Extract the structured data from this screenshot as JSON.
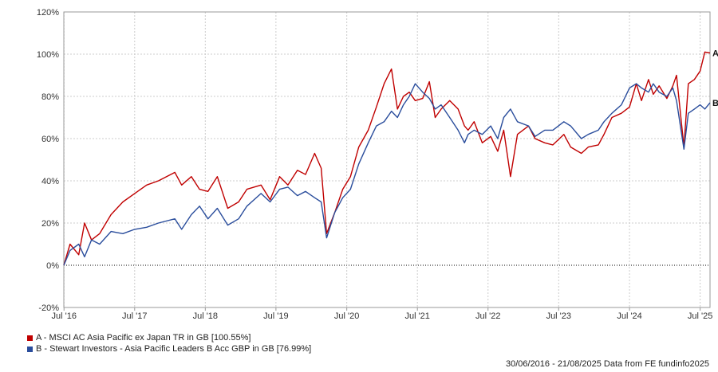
{
  "chart_data": {
    "type": "line",
    "ylabel": "",
    "xlabel": "",
    "y_unit": "%",
    "ylim": [
      -20,
      120
    ],
    "y_ticks": [
      -20,
      0,
      20,
      40,
      60,
      80,
      100,
      120
    ],
    "y_tick_labels": [
      "-20%",
      "0%",
      "20%",
      "40%",
      "60%",
      "80%",
      "100%",
      "120%"
    ],
    "x_range": [
      "2016-06-30",
      "2025-08-21"
    ],
    "x_ticks": [
      "2016-07-01",
      "2017-07-01",
      "2018-07-01",
      "2019-07-01",
      "2020-07-01",
      "2021-07-01",
      "2022-07-01",
      "2023-07-01",
      "2024-07-01",
      "2025-07-01"
    ],
    "x_tick_labels": [
      "Jul '16",
      "Jul '17",
      "Jul '18",
      "Jul '19",
      "Jul '20",
      "Jul '21",
      "Jul '22",
      "Jul '23",
      "Jul '24",
      "Jul '25"
    ],
    "grid": true,
    "zero_line": "dotted",
    "series": [
      {
        "name": "A - MSCI AC Asia Pacific ex Japan TR in GB [100.55%]",
        "end_label": "A",
        "color": "#c00000",
        "x": [
          "2016-06-30",
          "2016-08-01",
          "2016-09-15",
          "2016-10-15",
          "2016-11-20",
          "2017-01-01",
          "2017-03-01",
          "2017-05-01",
          "2017-07-01",
          "2017-09-01",
          "2017-11-01",
          "2018-01-25",
          "2018-03-01",
          "2018-04-20",
          "2018-06-01",
          "2018-07-15",
          "2018-09-01",
          "2018-10-25",
          "2018-12-20",
          "2019-02-01",
          "2019-04-15",
          "2019-06-01",
          "2019-07-20",
          "2019-09-01",
          "2019-10-20",
          "2019-12-01",
          "2020-01-17",
          "2020-02-20",
          "2020-03-19",
          "2020-04-30",
          "2020-06-10",
          "2020-07-20",
          "2020-09-01",
          "2020-10-20",
          "2020-12-01",
          "2021-01-10",
          "2021-02-17",
          "2021-03-20",
          "2021-04-20",
          "2021-05-20",
          "2021-06-20",
          "2021-07-28",
          "2021-09-01",
          "2021-10-01",
          "2021-11-01",
          "2021-12-15",
          "2022-01-27",
          "2022-03-01",
          "2022-03-20",
          "2022-04-20",
          "2022-06-01",
          "2022-07-15",
          "2022-08-20",
          "2022-09-20",
          "2022-10-25",
          "2022-11-30",
          "2023-01-26",
          "2023-03-01",
          "2023-04-20",
          "2023-06-01",
          "2023-07-28",
          "2023-09-01",
          "2023-10-26",
          "2023-12-01",
          "2024-01-22",
          "2024-02-20",
          "2024-04-01",
          "2024-05-20",
          "2024-07-01",
          "2024-08-05",
          "2024-09-01",
          "2024-10-07",
          "2024-11-01",
          "2024-12-01",
          "2025-01-10",
          "2025-02-10",
          "2025-03-01",
          "2025-04-08",
          "2025-05-01",
          "2025-06-01",
          "2025-07-01",
          "2025-07-25",
          "2025-08-21"
        ],
        "y": [
          0,
          10,
          5,
          20,
          12,
          15,
          24,
          30,
          34,
          38,
          40,
          44,
          38,
          42,
          36,
          35,
          42,
          27,
          30,
          36,
          38,
          31,
          42,
          38,
          45,
          43,
          53,
          46,
          15,
          25,
          36,
          42,
          56,
          64,
          75,
          86,
          93,
          74,
          80,
          82,
          78,
          79,
          87,
          70,
          74,
          78,
          74,
          66,
          64,
          68,
          58,
          61,
          54,
          64,
          42,
          62,
          66,
          60,
          58,
          57,
          62,
          56,
          53,
          56,
          57,
          62,
          70,
          72,
          75,
          86,
          78,
          88,
          81,
          85,
          79,
          85,
          90,
          56,
          86,
          88,
          92,
          101,
          100.55
        ]
      },
      {
        "name": "B - Stewart Investors - Asia Pacific Leaders B Acc GBP in GB [76.99%]",
        "end_label": "B",
        "color": "#2a4d9c",
        "x": [
          "2016-06-30",
          "2016-08-01",
          "2016-09-15",
          "2016-10-15",
          "2016-11-20",
          "2017-01-01",
          "2017-03-01",
          "2017-05-01",
          "2017-07-01",
          "2017-09-01",
          "2017-11-01",
          "2018-01-25",
          "2018-03-01",
          "2018-04-20",
          "2018-06-01",
          "2018-07-15",
          "2018-09-01",
          "2018-10-25",
          "2018-12-20",
          "2019-02-01",
          "2019-04-15",
          "2019-06-01",
          "2019-07-20",
          "2019-09-01",
          "2019-10-20",
          "2019-12-01",
          "2020-01-17",
          "2020-02-20",
          "2020-03-19",
          "2020-04-30",
          "2020-06-10",
          "2020-07-20",
          "2020-09-01",
          "2020-10-20",
          "2020-12-01",
          "2021-01-10",
          "2021-02-17",
          "2021-03-20",
          "2021-04-20",
          "2021-05-20",
          "2021-06-20",
          "2021-07-28",
          "2021-09-01",
          "2021-10-01",
          "2021-11-01",
          "2021-12-15",
          "2022-01-27",
          "2022-03-01",
          "2022-03-20",
          "2022-04-20",
          "2022-06-01",
          "2022-07-15",
          "2022-08-20",
          "2022-09-20",
          "2022-10-25",
          "2022-11-30",
          "2023-01-26",
          "2023-03-01",
          "2023-04-20",
          "2023-06-01",
          "2023-07-28",
          "2023-09-01",
          "2023-10-26",
          "2023-12-01",
          "2024-01-22",
          "2024-02-20",
          "2024-04-01",
          "2024-05-20",
          "2024-07-01",
          "2024-08-05",
          "2024-09-01",
          "2024-10-07",
          "2024-11-01",
          "2024-12-01",
          "2025-01-10",
          "2025-02-10",
          "2025-03-01",
          "2025-04-08",
          "2025-05-01",
          "2025-06-01",
          "2025-07-01",
          "2025-07-25",
          "2025-08-21"
        ],
        "y": [
          0,
          7,
          10,
          4,
          12,
          10,
          16,
          15,
          17,
          18,
          20,
          22,
          17,
          24,
          28,
          22,
          27,
          19,
          22,
          28,
          34,
          30,
          36,
          37,
          33,
          35,
          32,
          30,
          13,
          25,
          32,
          36,
          48,
          58,
          66,
          68,
          73,
          70,
          76,
          80,
          86,
          82,
          79,
          74,
          76,
          70,
          64,
          58,
          62,
          64,
          62,
          66,
          60,
          70,
          74,
          68,
          66,
          61,
          64,
          64,
          68,
          66,
          60,
          62,
          64,
          68,
          72,
          76,
          84,
          86,
          84,
          82,
          86,
          82,
          80,
          84,
          78,
          55,
          72,
          74,
          76,
          74,
          76.99
        ]
      }
    ]
  },
  "legend": {
    "items": [
      {
        "label": "A - MSCI AC Asia Pacific ex Japan TR in GB [100.55%]",
        "color": "#c00000"
      },
      {
        "label": "B - Stewart Investors - Asia Pacific Leaders B Acc GBP in GB [76.99%]",
        "color": "#2a4d9c"
      }
    ]
  },
  "footer": {
    "source_text": "30/06/2016 - 21/08/2025 Data from FE fundinfo2025"
  }
}
